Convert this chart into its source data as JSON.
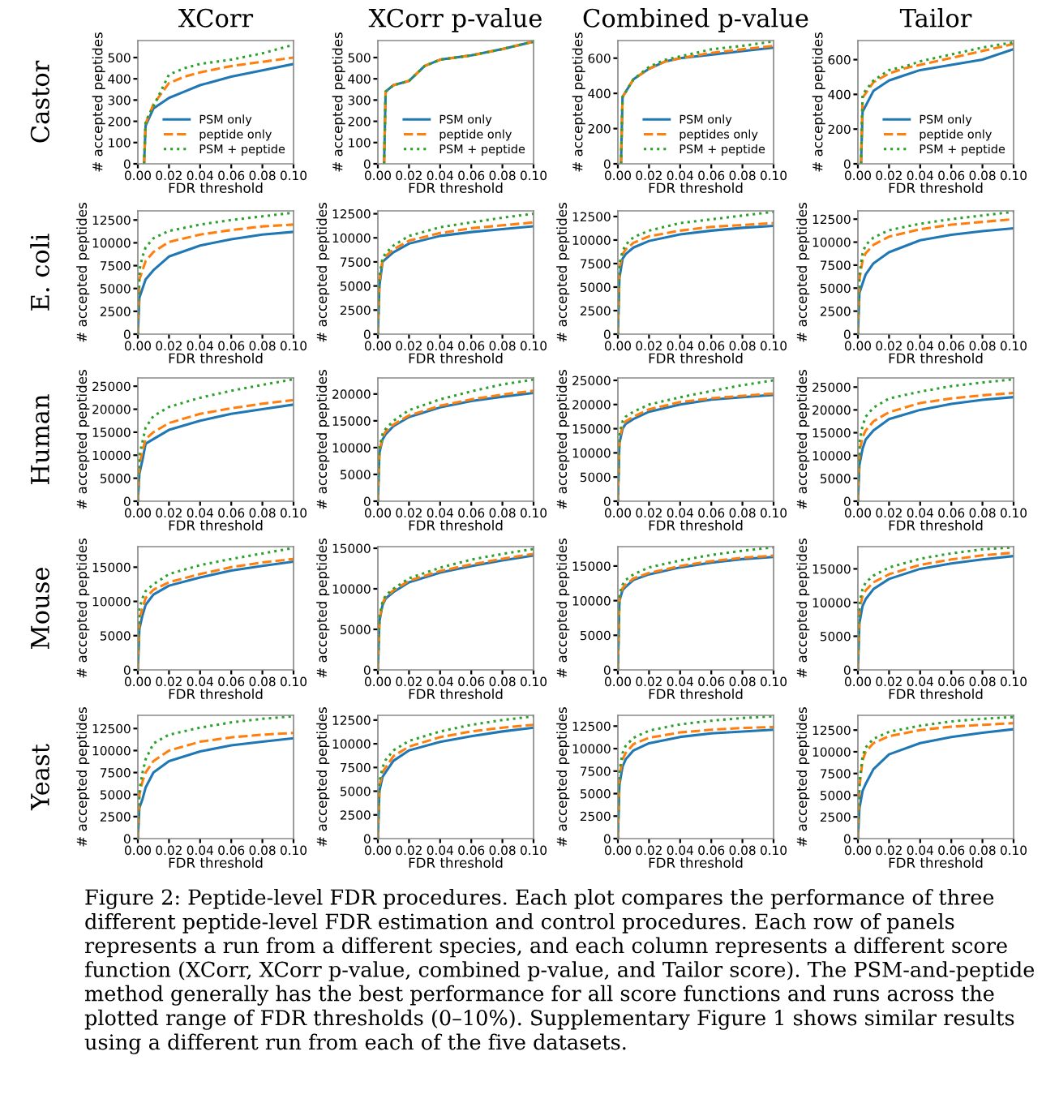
{
  "chart_data": [
    {
      "type": "line",
      "title": "XCorr",
      "xlabel": "FDR threshold",
      "ylabel": "# accepted peptides",
      "annotations": [
        "Castor"
      ],
      "legend": "bottom right",
      "x": [
        0.004,
        0.005,
        0.01,
        0.02,
        0.03,
        0.04,
        0.06,
        0.08,
        0.1
      ],
      "xlim": [
        0,
        0.1
      ],
      "xticks": [
        {
          "value": 0,
          "label": "0.00"
        },
        {
          "value": 0.02,
          "label": "0.02"
        },
        {
          "value": 0.04,
          "label": "0.04"
        },
        {
          "value": 0.06,
          "label": "0.06"
        },
        {
          "value": 0.08,
          "label": "0.08"
        },
        {
          "value": 0.1,
          "label": "0.10"
        }
      ],
      "ylim": [
        0,
        580
      ],
      "yticks": [
        0,
        100,
        200,
        300,
        400,
        500
      ],
      "series": [
        {
          "name": "PSM only",
          "color": "#1f77b4",
          "line_style": "solid",
          "values": [
            0,
            180,
            260,
            310,
            340,
            370,
            410,
            440,
            470
          ]
        },
        {
          "name": "peptide only",
          "color": "#ff7f0e",
          "line_style": "dashed",
          "values": [
            0,
            190,
            280,
            380,
            410,
            430,
            460,
            480,
            500
          ]
        },
        {
          "name": "PSM + peptide",
          "color": "#2ca02c",
          "line_style": "dotted",
          "values": [
            0,
            200,
            270,
            420,
            450,
            470,
            490,
            520,
            560
          ]
        }
      ]
    },
    {
      "type": "line",
      "title": "XCorr p-value",
      "xlabel": "FDR threshold",
      "ylabel": "# accepted peptides",
      "legend": "bottom right",
      "x": [
        0.004,
        0.005,
        0.01,
        0.02,
        0.03,
        0.04,
        0.06,
        0.08,
        0.1
      ],
      "xlim": [
        0,
        0.1
      ],
      "xticks": [
        {
          "value": 0,
          "label": "0.00"
        },
        {
          "value": 0.02,
          "label": "0.02"
        },
        {
          "value": 0.04,
          "label": "0.04"
        },
        {
          "value": 0.06,
          "label": "0.06"
        },
        {
          "value": 0.08,
          "label": "0.08"
        },
        {
          "value": 0.1,
          "label": "0.10"
        }
      ],
      "ylim": [
        0,
        580
      ],
      "yticks": [
        0,
        100,
        200,
        300,
        400,
        500
      ],
      "series": [
        {
          "name": "PSM only",
          "color": "#1f77b4",
          "line_style": "solid",
          "values": [
            0,
            340,
            370,
            390,
            460,
            490,
            510,
            540,
            575
          ]
        },
        {
          "name": "peptide only",
          "color": "#ff7f0e",
          "line_style": "dashed",
          "values": [
            0,
            340,
            370,
            390,
            460,
            490,
            510,
            540,
            575
          ]
        },
        {
          "name": "PSM + peptide",
          "color": "#2ca02c",
          "line_style": "dotted",
          "values": [
            0,
            340,
            370,
            390,
            460,
            490,
            510,
            540,
            575
          ]
        }
      ]
    },
    {
      "type": "line",
      "title": "Combined p-value",
      "xlabel": "FDR threshold",
      "ylabel": "# accepted peptides",
      "legend": "bottom right",
      "x": [
        0.002,
        0.003,
        0.01,
        0.02,
        0.03,
        0.04,
        0.06,
        0.08,
        0.1
      ],
      "xlim": [
        0,
        0.1
      ],
      "xticks": [
        {
          "value": 0,
          "label": "0.00"
        },
        {
          "value": 0.02,
          "label": "0.02"
        },
        {
          "value": 0.04,
          "label": "0.04"
        },
        {
          "value": 0.06,
          "label": "0.06"
        },
        {
          "value": 0.08,
          "label": "0.08"
        },
        {
          "value": 0.1,
          "label": "0.10"
        }
      ],
      "ylim": [
        0,
        700
      ],
      "yticks": [
        0,
        200,
        400,
        600
      ],
      "series": [
        {
          "name": "PSM only",
          "color": "#1f77b4",
          "line_style": "solid",
          "values": [
            0,
            380,
            480,
            540,
            580,
            600,
            620,
            640,
            660
          ]
        },
        {
          "name": "peptides only",
          "color": "#ff7f0e",
          "line_style": "dashed",
          "values": [
            0,
            380,
            480,
            540,
            580,
            600,
            630,
            650,
            670
          ]
        },
        {
          "name": "PSM + peptide",
          "color": "#2ca02c",
          "line_style": "dotted",
          "values": [
            0,
            380,
            480,
            550,
            590,
            610,
            650,
            670,
            695
          ]
        }
      ]
    },
    {
      "type": "line",
      "title": "Tailor",
      "xlabel": "FDR threshold",
      "ylabel": "# accepted peptides",
      "legend": "bottom right",
      "x": [
        0.002,
        0.003,
        0.01,
        0.02,
        0.03,
        0.04,
        0.06,
        0.08,
        0.1
      ],
      "xlim": [
        0,
        0.1
      ],
      "xticks": [
        {
          "value": 0,
          "label": "0.00"
        },
        {
          "value": 0.02,
          "label": "0.02"
        },
        {
          "value": 0.04,
          "label": "0.04"
        },
        {
          "value": 0.06,
          "label": "0.06"
        },
        {
          "value": 0.08,
          "label": "0.08"
        },
        {
          "value": 0.1,
          "label": "0.10"
        }
      ],
      "ylim": [
        0,
        710
      ],
      "yticks": [
        0,
        200,
        400,
        600
      ],
      "series": [
        {
          "name": "PSM only",
          "color": "#1f77b4",
          "line_style": "solid",
          "values": [
            0,
            300,
            420,
            480,
            510,
            540,
            570,
            600,
            660
          ]
        },
        {
          "name": "peptide only",
          "color": "#ff7f0e",
          "line_style": "dashed",
          "values": [
            0,
            380,
            470,
            520,
            550,
            570,
            610,
            650,
            690
          ]
        },
        {
          "name": "PSM + peptide",
          "color": "#2ca02c",
          "line_style": "dotted",
          "values": [
            0,
            400,
            480,
            540,
            560,
            590,
            630,
            670,
            700
          ]
        }
      ]
    },
    {
      "type": "line",
      "xlabel": "FDR threshold",
      "ylabel": "# accepted peptides",
      "annotations": [
        "E. coli"
      ],
      "x": [
        0,
        0.001,
        0.003,
        0.005,
        0.01,
        0.02,
        0.04,
        0.06,
        0.08,
        0.1
      ],
      "xlim": [
        0,
        0.1
      ],
      "xticks": [
        {
          "value": 0,
          "label": "0.00"
        },
        {
          "value": 0.02,
          "label": "0.02"
        },
        {
          "value": 0.04,
          "label": "0.04"
        },
        {
          "value": 0.06,
          "label": "0.06"
        },
        {
          "value": 0.08,
          "label": "0.08"
        },
        {
          "value": 0.1,
          "label": "0.10"
        }
      ],
      "ylim": [
        0,
        13500
      ],
      "yticks": [
        0,
        2500,
        5000,
        7500,
        10000,
        12500
      ],
      "series": [
        {
          "color": "#1f77b4",
          "line_style": "solid",
          "values": [
            0,
            4000,
            5000,
            6000,
            7000,
            8500,
            9700,
            10400,
            10900,
            11200
          ]
        },
        {
          "color": "#ff7f0e",
          "line_style": "dashed",
          "values": [
            0,
            6000,
            7000,
            8000,
            9000,
            10100,
            10900,
            11400,
            11800,
            12000
          ]
        },
        {
          "color": "#2ca02c",
          "line_style": "dotted",
          "values": [
            0,
            7000,
            8500,
            9500,
            10500,
            11300,
            12000,
            12500,
            12900,
            13300
          ]
        }
      ]
    },
    {
      "type": "line",
      "xlabel": "FDR threshold",
      "ylabel": "# accepted peptides",
      "x": [
        0,
        0.001,
        0.003,
        0.005,
        0.01,
        0.02,
        0.04,
        0.06,
        0.08,
        0.1
      ],
      "xlim": [
        0,
        0.1
      ],
      "xticks": [
        {
          "value": 0,
          "label": "0.00"
        },
        {
          "value": 0.02,
          "label": "0.02"
        },
        {
          "value": 0.04,
          "label": "0.04"
        },
        {
          "value": 0.06,
          "label": "0.06"
        },
        {
          "value": 0.08,
          "label": "0.08"
        },
        {
          "value": 0.1,
          "label": "0.10"
        }
      ],
      "ylim": [
        0,
        12800
      ],
      "yticks": [
        0,
        2500,
        5000,
        7500,
        10000,
        12500
      ],
      "series": [
        {
          "color": "#1f77b4",
          "line_style": "solid",
          "values": [
            0,
            5000,
            7500,
            7800,
            8500,
            9400,
            10200,
            10600,
            10900,
            11200
          ]
        },
        {
          "color": "#ff7f0e",
          "line_style": "dashed",
          "values": [
            0,
            5500,
            7700,
            8100,
            8800,
            9700,
            10500,
            11000,
            11300,
            11600
          ]
        },
        {
          "color": "#2ca02c",
          "line_style": "dotted",
          "values": [
            0,
            6000,
            7900,
            8400,
            9200,
            10200,
            11100,
            11600,
            12100,
            12500
          ]
        }
      ]
    },
    {
      "type": "line",
      "xlabel": "FDR threshold",
      "ylabel": "# accepted peptides",
      "x": [
        0,
        0.001,
        0.003,
        0.005,
        0.01,
        0.02,
        0.04,
        0.06,
        0.08,
        0.1
      ],
      "xlim": [
        0,
        0.1
      ],
      "xticks": [
        {
          "value": 0,
          "label": "0.00"
        },
        {
          "value": 0.02,
          "label": "0.02"
        },
        {
          "value": 0.04,
          "label": "0.04"
        },
        {
          "value": 0.06,
          "label": "0.06"
        },
        {
          "value": 0.08,
          "label": "0.08"
        },
        {
          "value": 0.1,
          "label": "0.10"
        }
      ],
      "ylim": [
        0,
        13100
      ],
      "yticks": [
        0,
        2500,
        5000,
        7500,
        10000,
        12500
      ],
      "series": [
        {
          "color": "#1f77b4",
          "line_style": "solid",
          "values": [
            0,
            6000,
            8000,
            8500,
            9200,
            9900,
            10600,
            11000,
            11300,
            11500
          ]
        },
        {
          "color": "#ff7f0e",
          "line_style": "dashed",
          "values": [
            0,
            7000,
            8500,
            9000,
            9700,
            10400,
            11000,
            11400,
            11600,
            11800
          ]
        },
        {
          "color": "#2ca02c",
          "line_style": "dotted",
          "values": [
            0,
            7500,
            8800,
            9500,
            10300,
            11000,
            11800,
            12200,
            12600,
            13000
          ]
        }
      ]
    },
    {
      "type": "line",
      "xlabel": "FDR threshold",
      "ylabel": "# accepted peptides",
      "x": [
        0,
        0.001,
        0.003,
        0.005,
        0.01,
        0.02,
        0.04,
        0.06,
        0.08,
        0.1
      ],
      "xlim": [
        0,
        0.1
      ],
      "xticks": [
        {
          "value": 0,
          "label": "0.00"
        },
        {
          "value": 0.02,
          "label": "0.02"
        },
        {
          "value": 0.04,
          "label": "0.04"
        },
        {
          "value": 0.06,
          "label": "0.06"
        },
        {
          "value": 0.08,
          "label": "0.08"
        },
        {
          "value": 0.1,
          "label": "0.10"
        }
      ],
      "ylim": [
        0,
        13400
      ],
      "yticks": [
        0,
        2500,
        5000,
        7500,
        10000,
        12500
      ],
      "series": [
        {
          "color": "#1f77b4",
          "line_style": "solid",
          "values": [
            0,
            4500,
            5500,
            6500,
            7700,
            8900,
            10200,
            10800,
            11200,
            11500
          ]
        },
        {
          "color": "#ff7f0e",
          "line_style": "dashed",
          "values": [
            0,
            6000,
            8000,
            8800,
            9700,
            10600,
            11400,
            11900,
            12200,
            12500
          ]
        },
        {
          "color": "#2ca02c",
          "line_style": "dotted",
          "values": [
            0,
            6500,
            8800,
            9700,
            10500,
            11300,
            12000,
            12500,
            12900,
            13300
          ]
        }
      ]
    },
    {
      "type": "line",
      "xlabel": "FDR threshold",
      "ylabel": "# accepted peptides",
      "annotations": [
        "Human"
      ],
      "x": [
        0,
        0.001,
        0.003,
        0.005,
        0.01,
        0.02,
        0.04,
        0.06,
        0.08,
        0.1
      ],
      "xlim": [
        0,
        0.1
      ],
      "xticks": [
        {
          "value": 0,
          "label": "0.00"
        },
        {
          "value": 0.02,
          "label": "0.02"
        },
        {
          "value": 0.04,
          "label": "0.04"
        },
        {
          "value": 0.06,
          "label": "0.06"
        },
        {
          "value": 0.08,
          "label": "0.08"
        },
        {
          "value": 0.1,
          "label": "0.10"
        }
      ],
      "ylim": [
        0,
        26800
      ],
      "yticks": [
        0,
        5000,
        10000,
        15000,
        20000,
        25000
      ],
      "series": [
        {
          "color": "#1f77b4",
          "line_style": "solid",
          "values": [
            0,
            6000,
            9000,
            12500,
            13500,
            15500,
            17500,
            19000,
            20000,
            21000
          ]
        },
        {
          "color": "#ff7f0e",
          "line_style": "dashed",
          "values": [
            0,
            8000,
            11000,
            13500,
            15000,
            17000,
            19000,
            20200,
            21200,
            22000
          ]
        },
        {
          "color": "#2ca02c",
          "line_style": "dotted",
          "values": [
            0,
            10000,
            13000,
            16000,
            18500,
            20500,
            22500,
            24000,
            25300,
            26500
          ]
        }
      ]
    },
    {
      "type": "line",
      "xlabel": "FDR threshold",
      "ylabel": "# accepted peptides",
      "x": [
        0,
        0.001,
        0.003,
        0.005,
        0.01,
        0.02,
        0.04,
        0.06,
        0.08,
        0.1
      ],
      "xlim": [
        0,
        0.1
      ],
      "xticks": [
        {
          "value": 0,
          "label": "0.00"
        },
        {
          "value": 0.02,
          "label": "0.02"
        },
        {
          "value": 0.04,
          "label": "0.04"
        },
        {
          "value": 0.06,
          "label": "0.06"
        },
        {
          "value": 0.08,
          "label": "0.08"
        },
        {
          "value": 0.1,
          "label": "0.10"
        }
      ],
      "ylim": [
        0,
        23000
      ],
      "yticks": [
        0,
        5000,
        10000,
        15000,
        20000
      ],
      "series": [
        {
          "color": "#1f77b4",
          "line_style": "solid",
          "values": [
            0,
            9000,
            11500,
            12500,
            14000,
            15700,
            17500,
            18700,
            19500,
            20200
          ]
        },
        {
          "color": "#ff7f0e",
          "line_style": "dashed",
          "values": [
            0,
            9500,
            12000,
            13000,
            14300,
            16000,
            17800,
            19000,
            19900,
            20600
          ]
        },
        {
          "color": "#2ca02c",
          "line_style": "dotted",
          "values": [
            0,
            10000,
            12500,
            13500,
            15000,
            17000,
            19000,
            20500,
            21800,
            22700
          ]
        }
      ]
    },
    {
      "type": "line",
      "xlabel": "FDR threshold",
      "ylabel": "# accepted peptides",
      "x": [
        0,
        0.001,
        0.003,
        0.005,
        0.01,
        0.02,
        0.04,
        0.06,
        0.08,
        0.1
      ],
      "xlim": [
        0,
        0.1
      ],
      "xticks": [
        {
          "value": 0,
          "label": "0.00"
        },
        {
          "value": 0.02,
          "label": "0.02"
        },
        {
          "value": 0.04,
          "label": "0.04"
        },
        {
          "value": 0.06,
          "label": "0.06"
        },
        {
          "value": 0.08,
          "label": "0.08"
        },
        {
          "value": 0.1,
          "label": "0.10"
        }
      ],
      "ylim": [
        0,
        25500
      ],
      "yticks": [
        0,
        5000,
        10000,
        15000,
        20000,
        25000
      ],
      "series": [
        {
          "color": "#1f77b4",
          "line_style": "solid",
          "values": [
            0,
            12000,
            15000,
            16000,
            17000,
            18500,
            20000,
            21000,
            21500,
            22000
          ]
        },
        {
          "color": "#ff7f0e",
          "line_style": "dashed",
          "values": [
            0,
            13000,
            15500,
            16500,
            17500,
            19000,
            20500,
            21300,
            21800,
            22300
          ]
        },
        {
          "color": "#2ca02c",
          "line_style": "dotted",
          "values": [
            0,
            14000,
            16500,
            17500,
            18500,
            20000,
            21500,
            22800,
            24000,
            25000
          ]
        }
      ]
    },
    {
      "type": "line",
      "xlabel": "FDR threshold",
      "ylabel": "# accepted peptides",
      "x": [
        0,
        0.001,
        0.003,
        0.005,
        0.01,
        0.02,
        0.04,
        0.06,
        0.08,
        0.1
      ],
      "xlim": [
        0,
        0.1
      ],
      "xticks": [
        {
          "value": 0,
          "label": "0.00"
        },
        {
          "value": 0.02,
          "label": "0.02"
        },
        {
          "value": 0.04,
          "label": "0.04"
        },
        {
          "value": 0.06,
          "label": "0.06"
        },
        {
          "value": 0.08,
          "label": "0.08"
        },
        {
          "value": 0.1,
          "label": "0.10"
        }
      ],
      "ylim": [
        0,
        27000
      ],
      "yticks": [
        0,
        5000,
        10000,
        15000,
        20000,
        25000
      ],
      "series": [
        {
          "color": "#1f77b4",
          "line_style": "solid",
          "values": [
            0,
            8000,
            11500,
            13500,
            15500,
            18000,
            20000,
            21300,
            22200,
            22800
          ]
        },
        {
          "color": "#ff7f0e",
          "line_style": "dashed",
          "values": [
            0,
            11000,
            14000,
            15500,
            17500,
            19500,
            21500,
            22500,
            23200,
            23700
          ]
        },
        {
          "color": "#2ca02c",
          "line_style": "dotted",
          "values": [
            0,
            13000,
            16500,
            18500,
            20500,
            22500,
            24000,
            25200,
            26000,
            26700
          ]
        }
      ]
    },
    {
      "type": "line",
      "xlabel": "FDR threshold",
      "ylabel": "# accepted peptides",
      "annotations": [
        "Mouse"
      ],
      "x": [
        0,
        0.001,
        0.003,
        0.005,
        0.01,
        0.02,
        0.04,
        0.06,
        0.08,
        0.1
      ],
      "xlim": [
        0,
        0.1
      ],
      "xticks": [
        {
          "value": 0,
          "label": "0.00"
        },
        {
          "value": 0.02,
          "label": "0.02"
        },
        {
          "value": 0.04,
          "label": "0.04"
        },
        {
          "value": 0.06,
          "label": "0.06"
        },
        {
          "value": 0.08,
          "label": "0.08"
        },
        {
          "value": 0.1,
          "label": "0.10"
        }
      ],
      "ylim": [
        0,
        18000
      ],
      "yticks": [
        0,
        5000,
        10000,
        15000
      ],
      "series": [
        {
          "color": "#1f77b4",
          "line_style": "solid",
          "values": [
            0,
            6000,
            8000,
            9500,
            11000,
            12300,
            13500,
            14500,
            15200,
            15800
          ]
        },
        {
          "color": "#ff7f0e",
          "line_style": "dashed",
          "values": [
            0,
            7500,
            9000,
            10500,
            11700,
            12800,
            14000,
            15000,
            15700,
            16200
          ]
        },
        {
          "color": "#2ca02c",
          "line_style": "dotted",
          "values": [
            0,
            9000,
            10500,
            11500,
            12500,
            14000,
            15300,
            16200,
            17000,
            17800
          ]
        }
      ]
    },
    {
      "type": "line",
      "xlabel": "FDR threshold",
      "ylabel": "# accepted peptides",
      "x": [
        0,
        0.001,
        0.003,
        0.005,
        0.01,
        0.02,
        0.04,
        0.06,
        0.08,
        0.1
      ],
      "xlim": [
        0,
        0.1
      ],
      "xticks": [
        {
          "value": 0,
          "label": "0.00"
        },
        {
          "value": 0.02,
          "label": "0.02"
        },
        {
          "value": 0.04,
          "label": "0.04"
        },
        {
          "value": 0.06,
          "label": "0.06"
        },
        {
          "value": 0.08,
          "label": "0.08"
        },
        {
          "value": 0.1,
          "label": "0.10"
        }
      ],
      "ylim": [
        0,
        15200
      ],
      "yticks": [
        0,
        5000,
        10000,
        15000
      ],
      "series": [
        {
          "color": "#1f77b4",
          "line_style": "solid",
          "values": [
            0,
            6000,
            8000,
            8800,
            9600,
            10800,
            12000,
            12800,
            13500,
            14100
          ]
        },
        {
          "color": "#ff7f0e",
          "line_style": "dashed",
          "values": [
            0,
            6200,
            8200,
            9000,
            9800,
            11000,
            12200,
            13000,
            13700,
            14300
          ]
        },
        {
          "color": "#2ca02c",
          "line_style": "dotted",
          "values": [
            0,
            6500,
            8400,
            9200,
            10000,
            11300,
            12600,
            13600,
            14300,
            14900
          ]
        }
      ]
    },
    {
      "type": "line",
      "xlabel": "FDR threshold",
      "ylabel": "# accepted peptides",
      "x": [
        0,
        0.001,
        0.003,
        0.005,
        0.01,
        0.02,
        0.04,
        0.06,
        0.08,
        0.1
      ],
      "xlim": [
        0,
        0.1
      ],
      "xticks": [
        {
          "value": 0,
          "label": "0.00"
        },
        {
          "value": 0.02,
          "label": "0.02"
        },
        {
          "value": 0.04,
          "label": "0.04"
        },
        {
          "value": 0.06,
          "label": "0.06"
        },
        {
          "value": 0.08,
          "label": "0.08"
        },
        {
          "value": 0.1,
          "label": "0.10"
        }
      ],
      "ylim": [
        0,
        17800
      ],
      "yticks": [
        0,
        5000,
        10000,
        15000
      ],
      "series": [
        {
          "color": "#1f77b4",
          "line_style": "solid",
          "values": [
            0,
            10000,
            11500,
            12000,
            13000,
            13800,
            14800,
            15500,
            16000,
            16300
          ]
        },
        {
          "color": "#ff7f0e",
          "line_style": "dashed",
          "values": [
            0,
            10500,
            11800,
            12300,
            13200,
            14000,
            15000,
            15700,
            16200,
            16500
          ]
        },
        {
          "color": "#2ca02c",
          "line_style": "dotted",
          "values": [
            0,
            11000,
            12300,
            13000,
            13800,
            14800,
            15800,
            16600,
            17200,
            17700
          ]
        }
      ]
    },
    {
      "type": "line",
      "xlabel": "FDR threshold",
      "ylabel": "# accepted peptides",
      "x": [
        0,
        0.001,
        0.003,
        0.005,
        0.01,
        0.02,
        0.04,
        0.06,
        0.08,
        0.1
      ],
      "xlim": [
        0,
        0.1
      ],
      "xticks": [
        {
          "value": 0,
          "label": "0.00"
        },
        {
          "value": 0.02,
          "label": "0.02"
        },
        {
          "value": 0.04,
          "label": "0.04"
        },
        {
          "value": 0.06,
          "label": "0.06"
        },
        {
          "value": 0.08,
          "label": "0.08"
        },
        {
          "value": 0.1,
          "label": "0.10"
        }
      ],
      "ylim": [
        0,
        18300
      ],
      "yticks": [
        0,
        5000,
        10000,
        15000
      ],
      "series": [
        {
          "color": "#1f77b4",
          "line_style": "solid",
          "values": [
            0,
            7000,
            9500,
            10500,
            12000,
            13500,
            15000,
            15800,
            16400,
            16900
          ]
        },
        {
          "color": "#ff7f0e",
          "line_style": "dashed",
          "values": [
            0,
            9000,
            11000,
            11800,
            13000,
            14200,
            15600,
            16400,
            17000,
            17400
          ]
        },
        {
          "color": "#2ca02c",
          "line_style": "dotted",
          "values": [
            0,
            10000,
            12000,
            13000,
            14000,
            15200,
            16500,
            17300,
            17900,
            18200
          ]
        }
      ]
    },
    {
      "type": "line",
      "xlabel": "FDR threshold",
      "ylabel": "# accepted peptides",
      "annotations": [
        "Yeast"
      ],
      "x": [
        0,
        0.001,
        0.003,
        0.005,
        0.01,
        0.02,
        0.04,
        0.06,
        0.08,
        0.1
      ],
      "xlim": [
        0,
        0.1
      ],
      "xticks": [
        {
          "value": 0,
          "label": "0.00"
        },
        {
          "value": 0.02,
          "label": "0.02"
        },
        {
          "value": 0.04,
          "label": "0.04"
        },
        {
          "value": 0.06,
          "label": "0.06"
        },
        {
          "value": 0.08,
          "label": "0.08"
        },
        {
          "value": 0.1,
          "label": "0.10"
        }
      ],
      "ylim": [
        0,
        14000
      ],
      "yticks": [
        0,
        2500,
        5000,
        7500,
        10000,
        12500
      ],
      "series": [
        {
          "color": "#1f77b4",
          "line_style": "solid",
          "values": [
            0,
            3500,
            4500,
            5800,
            7500,
            8800,
            9900,
            10600,
            11000,
            11400
          ]
        },
        {
          "color": "#ff7f0e",
          "line_style": "dashed",
          "values": [
            0,
            5000,
            6500,
            7500,
            8800,
            10000,
            11000,
            11500,
            11800,
            12000
          ]
        },
        {
          "color": "#2ca02c",
          "line_style": "dotted",
          "values": [
            0,
            5500,
            7500,
            9000,
            10800,
            11800,
            12600,
            13200,
            13600,
            13900
          ]
        }
      ]
    },
    {
      "type": "line",
      "xlabel": "FDR threshold",
      "ylabel": "# accepted peptides",
      "x": [
        0,
        0.001,
        0.003,
        0.005,
        0.01,
        0.02,
        0.04,
        0.06,
        0.08,
        0.1
      ],
      "xlim": [
        0,
        0.1
      ],
      "xticks": [
        {
          "value": 0,
          "label": "0.00"
        },
        {
          "value": 0.02,
          "label": "0.02"
        },
        {
          "value": 0.04,
          "label": "0.04"
        },
        {
          "value": 0.06,
          "label": "0.06"
        },
        {
          "value": 0.08,
          "label": "0.08"
        },
        {
          "value": 0.1,
          "label": "0.10"
        }
      ],
      "ylim": [
        0,
        13000
      ],
      "yticks": [
        0,
        2500,
        5000,
        7500,
        10000,
        12500
      ],
      "series": [
        {
          "color": "#1f77b4",
          "line_style": "solid",
          "values": [
            0,
            5000,
            6500,
            7000,
            8200,
            9300,
            10200,
            10800,
            11300,
            11700
          ]
        },
        {
          "color": "#ff7f0e",
          "line_style": "dashed",
          "values": [
            0,
            5500,
            7000,
            7500,
            8700,
            9700,
            10700,
            11300,
            11700,
            12000
          ]
        },
        {
          "color": "#2ca02c",
          "line_style": "dotted",
          "values": [
            0,
            6000,
            7500,
            8300,
            9300,
            10300,
            11300,
            12000,
            12500,
            12900
          ]
        }
      ]
    },
    {
      "type": "line",
      "xlabel": "FDR threshold",
      "ylabel": "# accepted peptides",
      "x": [
        0,
        0.001,
        0.003,
        0.005,
        0.01,
        0.02,
        0.04,
        0.06,
        0.08,
        0.1
      ],
      "xlim": [
        0,
        0.1
      ],
      "xticks": [
        {
          "value": 0,
          "label": "0.00"
        },
        {
          "value": 0.02,
          "label": "0.02"
        },
        {
          "value": 0.04,
          "label": "0.04"
        },
        {
          "value": 0.06,
          "label": "0.06"
        },
        {
          "value": 0.08,
          "label": "0.08"
        },
        {
          "value": 0.1,
          "label": "0.10"
        }
      ],
      "ylim": [
        0,
        13700
      ],
      "yticks": [
        0,
        2500,
        5000,
        7500,
        10000,
        12500
      ],
      "series": [
        {
          "color": "#1f77b4",
          "line_style": "solid",
          "values": [
            0,
            6000,
            8000,
            8800,
            9800,
            10600,
            11300,
            11700,
            11900,
            12100
          ]
        },
        {
          "color": "#ff7f0e",
          "line_style": "dashed",
          "values": [
            0,
            7000,
            8800,
            9500,
            10500,
            11200,
            11800,
            12100,
            12300,
            12400
          ]
        },
        {
          "color": "#2ca02c",
          "line_style": "dotted",
          "values": [
            0,
            7500,
            9500,
            10300,
            11200,
            12000,
            12700,
            13100,
            13400,
            13600
          ]
        }
      ]
    },
    {
      "type": "line",
      "xlabel": "FDR threshold",
      "ylabel": "# accepted peptides",
      "annotations": [
        "Figure 2: Peptide-level FDR procedures. Each plot compares the performance of three different peptide-level FDR estimation and control procedures. Each row of panels represents a run from a different species, and each column represents a different score function (XCorr, XCorr p-value, combined p-value, and Tailor score). The PSM-and-peptide method generally has the best performance for all score functions and runs across the plotted range of FDR thresholds (0–10%). Supplementary Figure 1 shows similar results using a different run from each of the five datasets."
      ],
      "x": [
        0,
        0.001,
        0.003,
        0.005,
        0.01,
        0.02,
        0.04,
        0.06,
        0.08,
        0.1
      ],
      "xlim": [
        0,
        0.1
      ],
      "xticks": [
        {
          "value": 0,
          "label": "0.00"
        },
        {
          "value": 0.02,
          "label": "0.02"
        },
        {
          "value": 0.04,
          "label": "0.04"
        },
        {
          "value": 0.06,
          "label": "0.06"
        },
        {
          "value": 0.08,
          "label": "0.08"
        },
        {
          "value": 0.1,
          "label": "0.10"
        }
      ],
      "ylim": [
        0,
        14200
      ],
      "yticks": [
        0,
        2500,
        5000,
        7500,
        10000,
        12500
      ],
      "series": [
        {
          "color": "#1f77b4",
          "line_style": "solid",
          "values": [
            0,
            3500,
            5500,
            6300,
            8000,
            9700,
            11000,
            11700,
            12200,
            12600
          ]
        },
        {
          "color": "#ff7f0e",
          "line_style": "dashed",
          "values": [
            0,
            6000,
            9000,
            10000,
            11000,
            11800,
            12500,
            12900,
            13100,
            13300
          ]
        },
        {
          "color": "#2ca02c",
          "line_style": "dotted",
          "values": [
            0,
            6500,
            9500,
            10500,
            11500,
            12300,
            13000,
            13500,
            13800,
            14000
          ]
        }
      ]
    }
  ]
}
